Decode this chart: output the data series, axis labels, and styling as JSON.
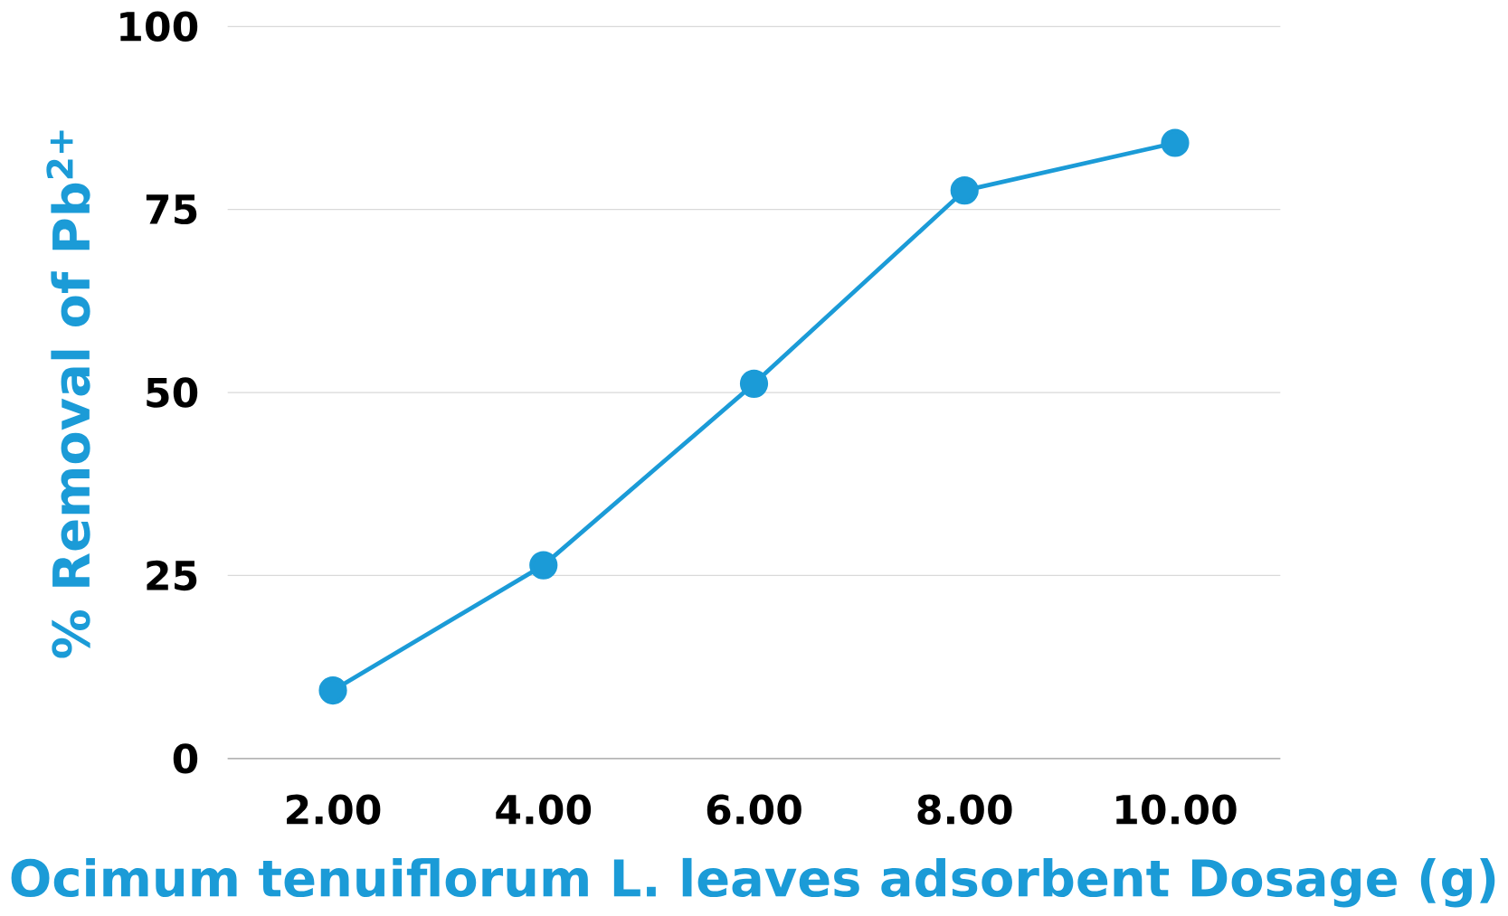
{
  "chart_data": {
    "type": "line",
    "xlabel": "Ocimum tenuiflorum L. leaves adsorbent Dosage (g)",
    "ylabel": "% Removal of Pb$^{2+}$",
    "categories": [
      "2.00",
      "4.00",
      "6.00",
      "8.00",
      "10.00"
    ],
    "series": [
      {
        "color": "#1b9bd7",
        "values": [
          9.3,
          26.4,
          51.2,
          77.6,
          84.1
        ]
      }
    ],
    "ylim": [
      0,
      100
    ],
    "yticks": [
      0,
      25,
      50,
      75,
      100
    ],
    "grid": "y",
    "marker": "circle",
    "line_style": "solid"
  }
}
